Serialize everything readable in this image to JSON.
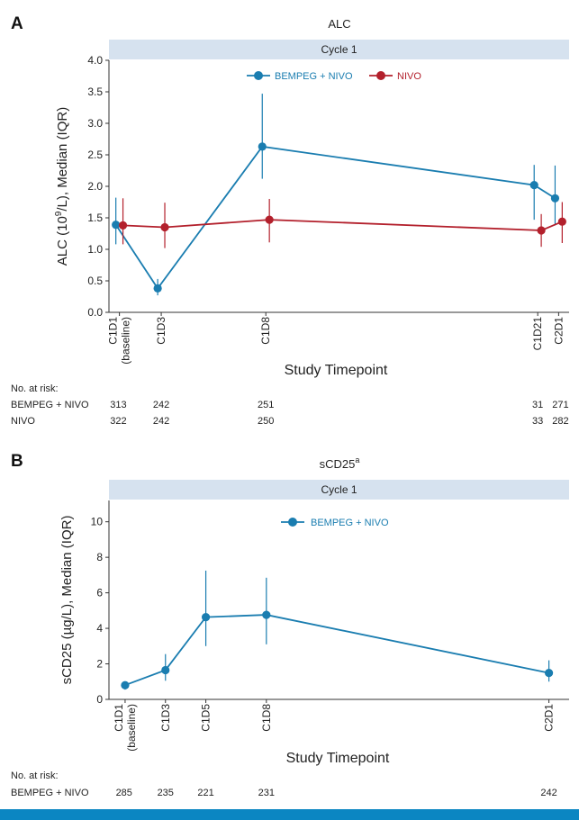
{
  "colors": {
    "bempeg_nivo": "#1a7db0",
    "nivo": "#b3202c",
    "strip_bg": "#d6e2ef",
    "footer": "#0b86c2"
  },
  "chart_data": [
    {
      "panel_letter": "A",
      "type": "line",
      "title": "ALC",
      "strip": "Cycle 1",
      "ylabel_parts": [
        "ALC (10",
        "9",
        "/L), Median (IQR)"
      ],
      "xlabel": "Study Timepoint",
      "ylim": [
        0,
        4.0
      ],
      "yticks": [
        "0.0",
        "0.5",
        "1.0",
        "1.5",
        "2.0",
        "2.5",
        "3.0",
        "3.5",
        "4.0"
      ],
      "timepoints": [
        {
          "label": "C1D1",
          "sub": "(baseline)",
          "day": 1
        },
        {
          "label": "C1D3",
          "sub": "",
          "day": 3
        },
        {
          "label": "C1D8",
          "sub": "",
          "day": 8
        },
        {
          "label": "C1D21",
          "sub": "",
          "day": 21
        },
        {
          "label": "C2D1",
          "sub": "",
          "day": 22
        }
      ],
      "xrange": [
        0.5,
        22.5
      ],
      "series": [
        {
          "name": "BEMPEG + NIVO",
          "color": "#1a7db0",
          "offset": -0.17,
          "median": [
            1.39,
            0.38,
            2.63,
            2.02,
            1.81
          ],
          "lower": [
            1.08,
            0.27,
            2.12,
            1.47,
            1.38
          ],
          "upper": [
            1.82,
            0.53,
            3.47,
            2.34,
            2.33
          ]
        },
        {
          "name": "NIVO",
          "color": "#b3202c",
          "offset": 0.17,
          "median": [
            1.38,
            1.35,
            1.47,
            1.3,
            1.44
          ],
          "lower": [
            1.08,
            1.02,
            1.11,
            1.04,
            1.1
          ],
          "upper": [
            1.81,
            1.74,
            1.8,
            1.56,
            1.75
          ]
        }
      ],
      "at_risk": {
        "header": "No. at risk:",
        "rows": [
          {
            "name": "BEMPEG + NIVO",
            "values": [
              "313",
              "242",
              "251",
              "31",
              "271"
            ]
          },
          {
            "name": "NIVO",
            "values": [
              "322",
              "242",
              "250",
              "33",
              "282"
            ]
          }
        ]
      }
    },
    {
      "panel_letter": "B",
      "type": "line",
      "title": "sCD25",
      "title_sup": "a",
      "strip": "Cycle 1",
      "ylabel_parts": [
        "sCD25 (µg/L), Median (IQR)"
      ],
      "xlabel": "Study Timepoint",
      "ylim": [
        0,
        11.2
      ],
      "yticks": [
        "0",
        "2",
        "4",
        "6",
        "8",
        "10"
      ],
      "timepoints": [
        {
          "label": "C1D1",
          "sub": "(baseline)",
          "day": 1
        },
        {
          "label": "C1D3",
          "sub": "",
          "day": 3
        },
        {
          "label": "C1D5",
          "sub": "",
          "day": 5
        },
        {
          "label": "C1D8",
          "sub": "",
          "day": 8
        },
        {
          "label": "C2D1",
          "sub": "",
          "day": 22
        }
      ],
      "xrange": [
        0.2,
        23.0
      ],
      "series": [
        {
          "name": "BEMPEG + NIVO",
          "color": "#1a7db0",
          "offset": 0,
          "median": [
            0.8,
            1.65,
            4.63,
            4.76,
            1.49
          ],
          "lower": [
            0.55,
            1.05,
            3.0,
            3.1,
            1.0
          ],
          "upper": [
            1.0,
            2.55,
            7.25,
            6.85,
            2.2
          ]
        }
      ],
      "at_risk": {
        "header": "No. at risk:",
        "rows": [
          {
            "name": "BEMPEG + NIVO",
            "values": [
              "285",
              "235",
              "221",
              "231",
              "242"
            ]
          }
        ]
      }
    }
  ]
}
